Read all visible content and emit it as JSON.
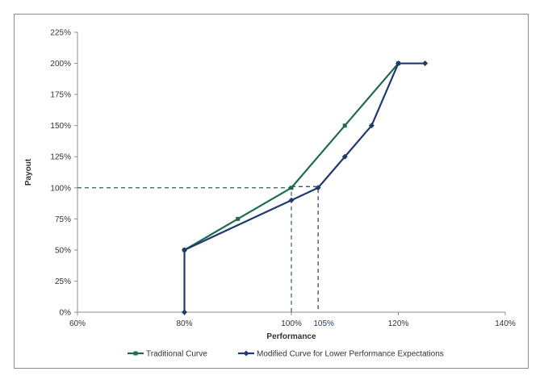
{
  "chart_data": {
    "type": "line",
    "xlabel": "Performance",
    "ylabel": "Payout",
    "xlim": [
      60,
      140
    ],
    "ylim": [
      0,
      225
    ],
    "x_ticks": [
      {
        "value": 60,
        "label": "60%"
      },
      {
        "value": 80,
        "label": "80%"
      },
      {
        "value": 100,
        "label": "100%"
      },
      {
        "value": 120,
        "label": "120%"
      },
      {
        "value": 140,
        "label": "140%"
      }
    ],
    "y_ticks": [
      {
        "value": 0,
        "label": "0%"
      },
      {
        "value": 25,
        "label": "25%"
      },
      {
        "value": 50,
        "label": "50%"
      },
      {
        "value": 75,
        "label": "75%"
      },
      {
        "value": 100,
        "label": "100%"
      },
      {
        "value": 125,
        "label": "125%"
      },
      {
        "value": 150,
        "label": "150%"
      },
      {
        "value": 175,
        "label": "175%"
      },
      {
        "value": 200,
        "label": "200%"
      },
      {
        "value": 225,
        "label": "225%"
      }
    ],
    "extra_x_tick": {
      "value": 105,
      "label": "105%",
      "color": "#1f3b6e"
    },
    "series": [
      {
        "name": "Traditional Curve",
        "color": "#1e6b4f",
        "marker": "square",
        "x": [
          80,
          90,
          100,
          110,
          120
        ],
        "y": [
          50,
          75,
          100,
          150,
          200
        ]
      },
      {
        "name": "Modified Curve for Lower Performance Expectations",
        "color": "#1f3b6e",
        "marker": "diamond",
        "x": [
          80,
          80,
          100,
          105,
          110,
          115,
          120,
          125
        ],
        "y": [
          0,
          50,
          90,
          100,
          125,
          150,
          200,
          200
        ]
      }
    ],
    "reference_lines": [
      {
        "color": "#1e6b4f",
        "points": [
          [
            60,
            100
          ],
          [
            100,
            100
          ],
          [
            100,
            0
          ]
        ]
      },
      {
        "color": "#1f3b6e",
        "points": [
          [
            100,
            101
          ],
          [
            105,
            101
          ],
          [
            105,
            0
          ]
        ]
      }
    ],
    "grid": false,
    "legend_position": "bottom"
  }
}
